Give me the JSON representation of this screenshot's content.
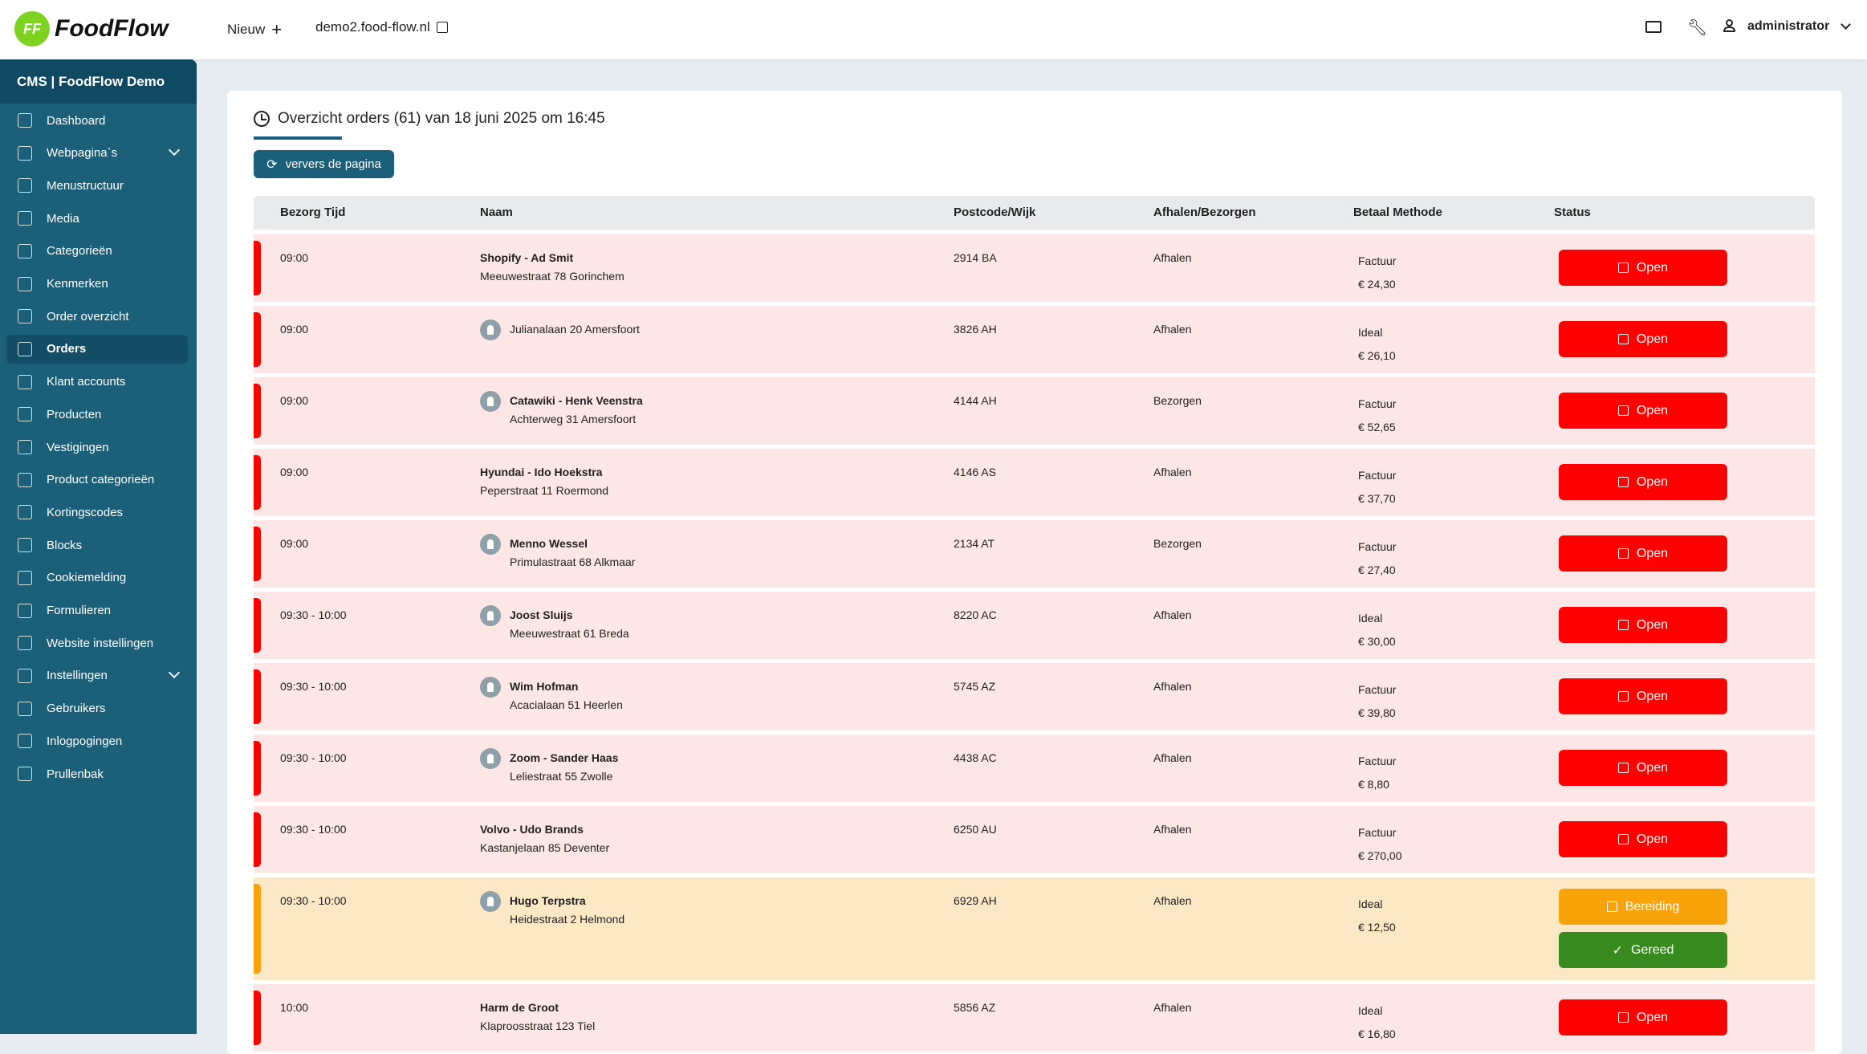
{
  "header": {
    "brand": "FoodFlow",
    "logo_text": "FF",
    "new_label": "Nieuw",
    "new_icon": "plus-icon",
    "site_link": "demo2.food-flow.nl",
    "user": "administrator",
    "icons": [
      "mail-icon",
      "wrench-icon",
      "user-icon"
    ]
  },
  "sidebar": {
    "title": "CMS | FoodFlow Demo",
    "items": [
      {
        "label": "Dashboard"
      },
      {
        "label": "Webpagina`s",
        "expandable": true
      },
      {
        "label": "Menustructuur"
      },
      {
        "label": "Media"
      },
      {
        "label": "Categorieën"
      },
      {
        "label": "Kenmerken"
      },
      {
        "label": "Order overzicht"
      },
      {
        "label": "Orders",
        "active": true
      },
      {
        "label": "Klant accounts"
      },
      {
        "label": "Producten"
      },
      {
        "label": "Vestigingen"
      },
      {
        "label": "Product categorieën"
      },
      {
        "label": "Kortingscodes"
      },
      {
        "label": "Blocks"
      },
      {
        "label": "Cookiemelding"
      },
      {
        "label": "Formulieren"
      },
      {
        "label": "Website instellingen"
      },
      {
        "label": "Instellingen",
        "expandable": true
      },
      {
        "label": "Gebruikers"
      },
      {
        "label": "Inlogpogingen"
      },
      {
        "label": "Prullenbak"
      }
    ]
  },
  "main": {
    "title": "Overzicht orders (61) van 18 juni 2025 om 16:45",
    "refresh_label": "ververs de pagina",
    "columns": [
      "Bezorg Tijd",
      "Naam",
      "Postcode/Wijk",
      "Afhalen/Bezorgen",
      "Betaal Methode",
      "Status"
    ],
    "colors": {
      "open": "#ff0000",
      "open_row": "#fde6e6",
      "prep": "#f9a30a",
      "prep_row": "#fde8c6",
      "done": "#378b1f",
      "accent": "#1b5f79"
    },
    "rows": [
      {
        "time": "09:00",
        "name": "Shopify - Ad Smit",
        "address": "Meeuwestraat 78 Gorinchem",
        "avatar": false,
        "postcode": "2914 BA",
        "type": "Afhalen",
        "payment": "Factuur",
        "price": "€ 24,30",
        "status": "Open"
      },
      {
        "time": "09:00",
        "name": "",
        "address": "Julianalaan 20 Amersfoort",
        "avatar": true,
        "postcode": "3826 AH",
        "type": "Afhalen",
        "payment": "Ideal",
        "price": "€ 26,10",
        "status": "Open"
      },
      {
        "time": "09:00",
        "name": "Catawiki - Henk Veenstra",
        "address": "Achterweg 31 Amersfoort",
        "avatar": true,
        "postcode": "4144 AH",
        "type": "Bezorgen",
        "payment": "Factuur",
        "price": "€ 52,65",
        "status": "Open"
      },
      {
        "time": "09:00",
        "name": "Hyundai - Ido Hoekstra",
        "address": "Peperstraat 11 Roermond",
        "avatar": false,
        "postcode": "4146 AS",
        "type": "Afhalen",
        "payment": "Factuur",
        "price": "€ 37,70",
        "status": "Open"
      },
      {
        "time": "09:00",
        "name": "Menno Wessel",
        "address": "Primulastraat 68 Alkmaar",
        "avatar": true,
        "postcode": "2134 AT",
        "type": "Bezorgen",
        "payment": "Factuur",
        "price": "€ 27,40",
        "status": "Open"
      },
      {
        "time": "09:30 - 10:00",
        "name": "Joost Sluijs",
        "address": "Meeuwestraat 61 Breda",
        "avatar": true,
        "postcode": "8220 AC",
        "type": "Afhalen",
        "payment": "Ideal",
        "price": "€ 30,00",
        "status": "Open"
      },
      {
        "time": "09:30 - 10:00",
        "name": "Wim Hofman",
        "address": "Acacialaan 51 Heerlen",
        "avatar": true,
        "postcode": "5745 AZ",
        "type": "Afhalen",
        "payment": "Factuur",
        "price": "€ 39,80",
        "status": "Open"
      },
      {
        "time": "09:30 - 10:00",
        "name": "Zoom - Sander Haas",
        "address": "Leliestraat 55 Zwolle",
        "avatar": true,
        "postcode": "4438 AC",
        "type": "Afhalen",
        "payment": "Factuur",
        "price": "€ 8,80",
        "status": "Open"
      },
      {
        "time": "09:30 - 10:00",
        "name": "Volvo - Udo Brands",
        "address": "Kastanjelaan 85 Deventer",
        "avatar": false,
        "postcode": "6250 AU",
        "type": "Afhalen",
        "payment": "Factuur",
        "price": "€ 270,00",
        "status": "Open"
      },
      {
        "time": "09:30 - 10:00",
        "name": "Hugo Terpstra",
        "address": "Heidestraat 2 Helmond",
        "avatar": true,
        "postcode": "6929 AH",
        "type": "Afhalen",
        "payment": "Ideal",
        "price": "€ 12,50",
        "status": "Bereiding",
        "secondary_action": "Gereed"
      },
      {
        "time": "10:00",
        "name": "Harm de Groot",
        "address": "Klaproosstraat 123 Tiel",
        "avatar": false,
        "postcode": "5856 AZ",
        "type": "Afhalen",
        "payment": "Ideal",
        "price": "€ 16,80",
        "status": "Open"
      }
    ]
  }
}
